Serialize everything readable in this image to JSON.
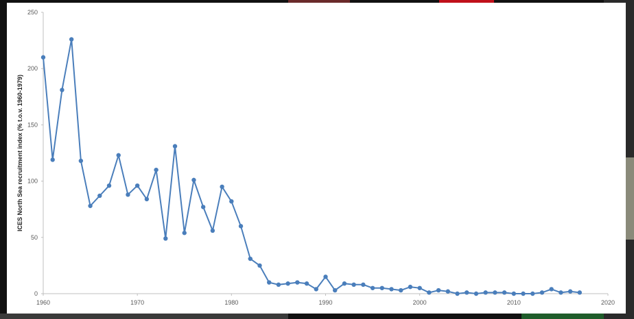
{
  "chart_data": {
    "type": "line",
    "title": "",
    "xlabel": "",
    "ylabel": "ICES North Sea recruitment index (% t.o.v. 1960-1979)",
    "xlim": [
      1960,
      2020
    ],
    "ylim": [
      0,
      250
    ],
    "xticks": [
      1960,
      1970,
      1980,
      1990,
      2000,
      2010,
      2020
    ],
    "yticks": [
      0,
      50,
      100,
      150,
      200,
      250
    ],
    "grid": false,
    "series": [
      {
        "color": "#4a7ebb",
        "marker": "circle",
        "x": [
          1960,
          1961,
          1962,
          1963,
          1964,
          1965,
          1966,
          1967,
          1968,
          1969,
          1970,
          1971,
          1972,
          1973,
          1974,
          1975,
          1976,
          1977,
          1978,
          1979,
          1980,
          1981,
          1982,
          1983,
          1984,
          1985,
          1986,
          1987,
          1988,
          1989,
          1990,
          1991,
          1992,
          1993,
          1994,
          1995,
          1996,
          1997,
          1998,
          1999,
          2000,
          2001,
          2002,
          2003,
          2004,
          2005,
          2006,
          2007,
          2008,
          2009,
          2010,
          2011,
          2012,
          2013,
          2014,
          2015,
          2016,
          2017
        ],
        "y": [
          210,
          119,
          181,
          226,
          118,
          78,
          87,
          96,
          123,
          88,
          96,
          84,
          110,
          49,
          131,
          54,
          101,
          77,
          56,
          95,
          82,
          60,
          31,
          25,
          10,
          8,
          9,
          10,
          9,
          4,
          15,
          3,
          9,
          8,
          8,
          5,
          5,
          4,
          3,
          6,
          5,
          1,
          3,
          2,
          0,
          1,
          0,
          1,
          1,
          1,
          0,
          0,
          0,
          1,
          4,
          1,
          2,
          1
        ]
      }
    ]
  }
}
